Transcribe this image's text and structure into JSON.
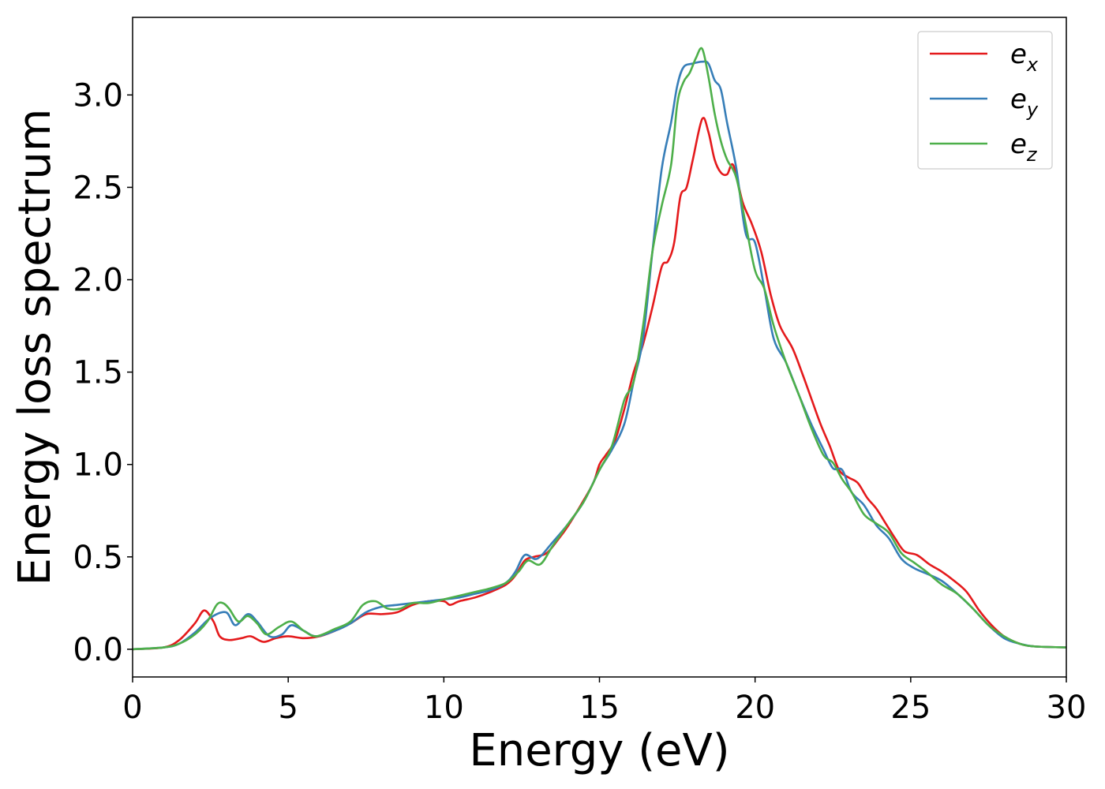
{
  "chart_data": {
    "type": "line",
    "xlabel": "Energy (eV)",
    "ylabel": "Energy loss spectrum",
    "xlim": [
      0,
      30
    ],
    "ylim": [
      -0.15,
      3.42
    ],
    "xticks": [
      0,
      5,
      10,
      15,
      20,
      25,
      30
    ],
    "xtick_labels": [
      "0",
      "5",
      "10",
      "15",
      "20",
      "25",
      "30"
    ],
    "yticks": [
      0.0,
      0.5,
      1.0,
      1.5,
      2.0,
      2.5,
      3.0
    ],
    "ytick_labels": [
      "0.0",
      "0.5",
      "1.0",
      "1.5",
      "2.0",
      "2.5",
      "3.0"
    ],
    "grid": false,
    "legend_position": "top-right",
    "series": [
      {
        "name": "e",
        "subscript": "x",
        "color": "#e41a1c",
        "points": [
          [
            0,
            0
          ],
          [
            1,
            0.01
          ],
          [
            1.5,
            0.05
          ],
          [
            2,
            0.14
          ],
          [
            2.3,
            0.21
          ],
          [
            2.6,
            0.15
          ],
          [
            2.8,
            0.07
          ],
          [
            3.1,
            0.05
          ],
          [
            3.5,
            0.06
          ],
          [
            3.8,
            0.07
          ],
          [
            4.2,
            0.04
          ],
          [
            4.6,
            0.06
          ],
          [
            5,
            0.07
          ],
          [
            5.5,
            0.06
          ],
          [
            6,
            0.07
          ],
          [
            6.5,
            0.1
          ],
          [
            7,
            0.14
          ],
          [
            7.5,
            0.19
          ],
          [
            8,
            0.19
          ],
          [
            8.5,
            0.2
          ],
          [
            9,
            0.24
          ],
          [
            9.5,
            0.26
          ],
          [
            10,
            0.26
          ],
          [
            10.2,
            0.24
          ],
          [
            10.5,
            0.26
          ],
          [
            11,
            0.28
          ],
          [
            11.5,
            0.31
          ],
          [
            12,
            0.35
          ],
          [
            12.3,
            0.4
          ],
          [
            12.6,
            0.48
          ],
          [
            12.9,
            0.5
          ],
          [
            13.3,
            0.52
          ],
          [
            13.7,
            0.6
          ],
          [
            14,
            0.67
          ],
          [
            14.4,
            0.78
          ],
          [
            14.8,
            0.9
          ],
          [
            15,
            1.0
          ],
          [
            15.2,
            1.05
          ],
          [
            15.5,
            1.13
          ],
          [
            15.8,
            1.3
          ],
          [
            16.1,
            1.5
          ],
          [
            16.4,
            1.65
          ],
          [
            16.7,
            1.85
          ],
          [
            17,
            2.07
          ],
          [
            17.2,
            2.1
          ],
          [
            17.4,
            2.2
          ],
          [
            17.6,
            2.45
          ],
          [
            17.8,
            2.5
          ],
          [
            18,
            2.65
          ],
          [
            18.3,
            2.87
          ],
          [
            18.5,
            2.8
          ],
          [
            18.7,
            2.65
          ],
          [
            18.9,
            2.58
          ],
          [
            19.1,
            2.57
          ],
          [
            19.3,
            2.62
          ],
          [
            19.6,
            2.42
          ],
          [
            19.9,
            2.3
          ],
          [
            20.2,
            2.15
          ],
          [
            20.5,
            1.92
          ],
          [
            20.8,
            1.75
          ],
          [
            21.2,
            1.63
          ],
          [
            21.5,
            1.5
          ],
          [
            21.8,
            1.36
          ],
          [
            22.1,
            1.22
          ],
          [
            22.4,
            1.1
          ],
          [
            22.7,
            0.97
          ],
          [
            23,
            0.93
          ],
          [
            23.3,
            0.9
          ],
          [
            23.6,
            0.82
          ],
          [
            23.9,
            0.76
          ],
          [
            24.2,
            0.68
          ],
          [
            24.5,
            0.6
          ],
          [
            24.8,
            0.53
          ],
          [
            25.2,
            0.51
          ],
          [
            25.6,
            0.46
          ],
          [
            26,
            0.42
          ],
          [
            26.4,
            0.37
          ],
          [
            26.8,
            0.31
          ],
          [
            27.2,
            0.21
          ],
          [
            27.6,
            0.13
          ],
          [
            28,
            0.07
          ],
          [
            28.5,
            0.03
          ],
          [
            29,
            0.015
          ],
          [
            30,
            0.01
          ]
        ]
      },
      {
        "name": "e",
        "subscript": "y",
        "color": "#377eb8",
        "points": [
          [
            0,
            0
          ],
          [
            1,
            0.01
          ],
          [
            1.5,
            0.03
          ],
          [
            2,
            0.09
          ],
          [
            2.5,
            0.17
          ],
          [
            3,
            0.2
          ],
          [
            3.3,
            0.13
          ],
          [
            3.7,
            0.19
          ],
          [
            4,
            0.15
          ],
          [
            4.4,
            0.07
          ],
          [
            4.8,
            0.08
          ],
          [
            5.1,
            0.13
          ],
          [
            5.5,
            0.1
          ],
          [
            5.9,
            0.07
          ],
          [
            6.5,
            0.1
          ],
          [
            7,
            0.14
          ],
          [
            7.5,
            0.2
          ],
          [
            8,
            0.23
          ],
          [
            8.5,
            0.24
          ],
          [
            9,
            0.25
          ],
          [
            9.5,
            0.26
          ],
          [
            10,
            0.27
          ],
          [
            10.5,
            0.28
          ],
          [
            11,
            0.3
          ],
          [
            11.5,
            0.32
          ],
          [
            12,
            0.36
          ],
          [
            12.3,
            0.42
          ],
          [
            12.6,
            0.51
          ],
          [
            13,
            0.49
          ],
          [
            13.5,
            0.58
          ],
          [
            14,
            0.68
          ],
          [
            14.5,
            0.8
          ],
          [
            15,
            0.97
          ],
          [
            15.4,
            1.08
          ],
          [
            15.8,
            1.22
          ],
          [
            16.1,
            1.45
          ],
          [
            16.4,
            1.68
          ],
          [
            16.7,
            2.15
          ],
          [
            17,
            2.6
          ],
          [
            17.3,
            2.85
          ],
          [
            17.5,
            3.05
          ],
          [
            17.7,
            3.15
          ],
          [
            18,
            3.17
          ],
          [
            18.3,
            3.18
          ],
          [
            18.5,
            3.17
          ],
          [
            18.7,
            3.08
          ],
          [
            18.9,
            3.03
          ],
          [
            19.1,
            2.85
          ],
          [
            19.4,
            2.6
          ],
          [
            19.7,
            2.25
          ],
          [
            20,
            2.2
          ],
          [
            20.3,
            1.95
          ],
          [
            20.6,
            1.68
          ],
          [
            21,
            1.55
          ],
          [
            21.4,
            1.38
          ],
          [
            21.8,
            1.22
          ],
          [
            22.2,
            1.08
          ],
          [
            22.5,
            0.98
          ],
          [
            22.8,
            0.97
          ],
          [
            23.1,
            0.85
          ],
          [
            23.5,
            0.78
          ],
          [
            23.9,
            0.67
          ],
          [
            24.3,
            0.6
          ],
          [
            24.7,
            0.49
          ],
          [
            25.1,
            0.44
          ],
          [
            25.5,
            0.41
          ],
          [
            26,
            0.37
          ],
          [
            26.5,
            0.3
          ],
          [
            27,
            0.22
          ],
          [
            27.5,
            0.13
          ],
          [
            28,
            0.06
          ],
          [
            28.5,
            0.03
          ],
          [
            29,
            0.015
          ],
          [
            30,
            0.01
          ]
        ]
      },
      {
        "name": "e",
        "subscript": "z",
        "color": "#4daf4a",
        "points": [
          [
            0,
            0
          ],
          [
            1,
            0.01
          ],
          [
            1.5,
            0.03
          ],
          [
            2,
            0.08
          ],
          [
            2.4,
            0.15
          ],
          [
            2.7,
            0.24
          ],
          [
            2.9,
            0.25
          ],
          [
            3.1,
            0.22
          ],
          [
            3.4,
            0.15
          ],
          [
            3.7,
            0.18
          ],
          [
            4,
            0.14
          ],
          [
            4.3,
            0.08
          ],
          [
            4.7,
            0.12
          ],
          [
            5.1,
            0.15
          ],
          [
            5.5,
            0.1
          ],
          [
            5.9,
            0.07
          ],
          [
            6.5,
            0.11
          ],
          [
            7,
            0.15
          ],
          [
            7.4,
            0.24
          ],
          [
            7.8,
            0.26
          ],
          [
            8.2,
            0.22
          ],
          [
            8.6,
            0.22
          ],
          [
            9,
            0.25
          ],
          [
            9.5,
            0.25
          ],
          [
            10,
            0.27
          ],
          [
            10.5,
            0.29
          ],
          [
            11,
            0.31
          ],
          [
            11.5,
            0.33
          ],
          [
            12,
            0.36
          ],
          [
            12.4,
            0.42
          ],
          [
            12.7,
            0.48
          ],
          [
            13.1,
            0.46
          ],
          [
            13.5,
            0.56
          ],
          [
            14,
            0.68
          ],
          [
            14.5,
            0.8
          ],
          [
            15,
            0.97
          ],
          [
            15.4,
            1.1
          ],
          [
            15.8,
            1.35
          ],
          [
            16.1,
            1.45
          ],
          [
            16.4,
            1.75
          ],
          [
            16.7,
            2.15
          ],
          [
            17,
            2.4
          ],
          [
            17.3,
            2.62
          ],
          [
            17.5,
            2.95
          ],
          [
            17.7,
            3.07
          ],
          [
            17.9,
            3.12
          ],
          [
            18.1,
            3.2
          ],
          [
            18.3,
            3.25
          ],
          [
            18.5,
            3.1
          ],
          [
            18.7,
            2.9
          ],
          [
            18.9,
            2.75
          ],
          [
            19.1,
            2.65
          ],
          [
            19.4,
            2.55
          ],
          [
            19.7,
            2.3
          ],
          [
            20,
            2.05
          ],
          [
            20.3,
            1.95
          ],
          [
            20.6,
            1.75
          ],
          [
            21,
            1.55
          ],
          [
            21.4,
            1.38
          ],
          [
            21.8,
            1.2
          ],
          [
            22.2,
            1.05
          ],
          [
            22.5,
            1.01
          ],
          [
            22.8,
            0.92
          ],
          [
            23.1,
            0.85
          ],
          [
            23.5,
            0.73
          ],
          [
            23.9,
            0.68
          ],
          [
            24.3,
            0.63
          ],
          [
            24.7,
            0.52
          ],
          [
            25.1,
            0.47
          ],
          [
            25.5,
            0.42
          ],
          [
            26,
            0.35
          ],
          [
            26.5,
            0.3
          ],
          [
            27,
            0.22
          ],
          [
            27.5,
            0.13
          ],
          [
            28,
            0.07
          ],
          [
            28.5,
            0.03
          ],
          [
            29,
            0.015
          ],
          [
            30,
            0.01
          ]
        ]
      }
    ]
  }
}
